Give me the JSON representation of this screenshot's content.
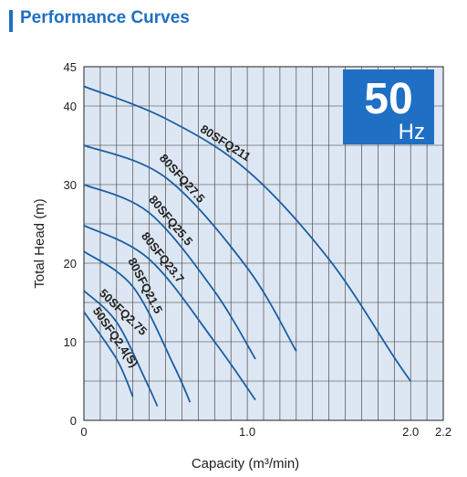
{
  "banner": {
    "title": "Performance Curves",
    "accent_color": "#1f6fc4"
  },
  "badge": {
    "frequency": "50",
    "unit": "Hz",
    "bg_color": "#1f6fc4",
    "text_color": "#ffffff"
  },
  "chart_data": {
    "type": "line",
    "title": "",
    "xlabel": "Capacity (m³/min)",
    "ylabel": "Total Head (m)",
    "xlim": [
      0,
      2.2
    ],
    "ylim": [
      0,
      45
    ],
    "x_ticks": [
      "0",
      "1.0",
      "2.0",
      "2.2"
    ],
    "x_tick_values": [
      0,
      1.0,
      2.0,
      2.2
    ],
    "y_ticks": [
      "0",
      "10",
      "20",
      "30",
      "40",
      "45"
    ],
    "y_tick_values": [
      0,
      10,
      20,
      30,
      40,
      45
    ],
    "grid": true,
    "plot_bg": "#dde7f3",
    "line_color": "#1a5fa3",
    "series": [
      {
        "name": "80SFQ211",
        "x": [
          0,
          0.5,
          1.0,
          1.5,
          1.9,
          2.0
        ],
        "y": [
          42.5,
          38.4,
          31.8,
          20.5,
          8.0,
          5.0
        ]
      },
      {
        "name": "80SFQ27.5",
        "x": [
          0,
          0.5,
          1.0,
          1.3
        ],
        "y": [
          35.0,
          30.9,
          19.4,
          8.8
        ]
      },
      {
        "name": "80SFQ25.5",
        "x": [
          0,
          0.4,
          0.8,
          1.05
        ],
        "y": [
          30.0,
          26.4,
          16.4,
          7.8
        ]
      },
      {
        "name": "80SFQ23.7",
        "x": [
          0,
          0.4,
          0.8,
          1.05
        ],
        "y": [
          24.8,
          20.5,
          10.0,
          2.6
        ]
      },
      {
        "name": "80SFQ21.5",
        "x": [
          0,
          0.3,
          0.55,
          0.65
        ],
        "y": [
          21.5,
          17.0,
          7.0,
          2.3
        ]
      },
      {
        "name": "50SFQ2.75",
        "x": [
          0,
          0.2,
          0.38,
          0.45
        ],
        "y": [
          16.5,
          12.5,
          5.0,
          1.8
        ]
      },
      {
        "name": "50SFQ2.4(S)",
        "x": [
          0,
          0.2,
          0.3
        ],
        "y": [
          13.8,
          7.8,
          3.0
        ]
      }
    ]
  }
}
